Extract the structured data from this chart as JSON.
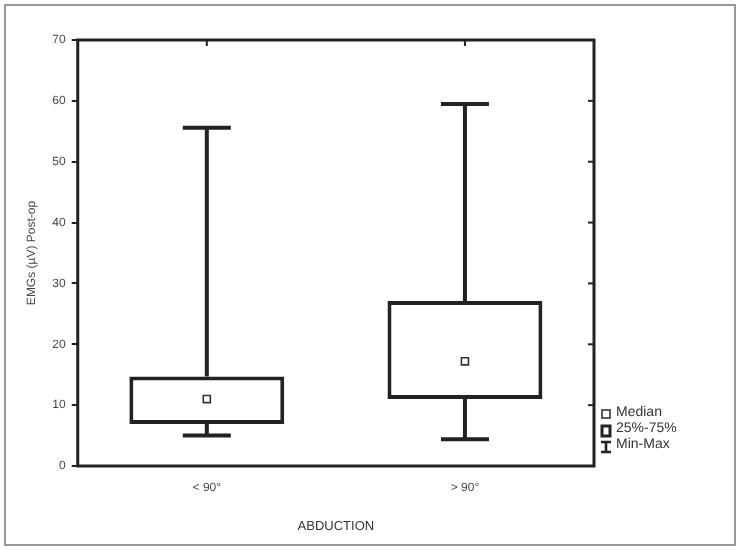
{
  "chart_data": {
    "type": "box",
    "xlabel": "ABDUCTION",
    "ylabel": "EMGs (µV) Post-op",
    "categories": [
      "< 90°",
      "> 90°"
    ],
    "boxes": [
      {
        "low": 5.0,
        "q1": 6.9,
        "median": 11.0,
        "q3": 14.7,
        "high": 55.6
      },
      {
        "low": 4.4,
        "q1": 11.0,
        "median": 17.2,
        "q3": 27.1,
        "high": 59.5
      }
    ],
    "ylim": [
      0,
      70
    ],
    "yticks": [
      0,
      10,
      20,
      30,
      40,
      50,
      60,
      70
    ],
    "grid": false,
    "marker": "square",
    "annotations": [
      "Median",
      "25%-75%",
      "Min-Max"
    ]
  }
}
